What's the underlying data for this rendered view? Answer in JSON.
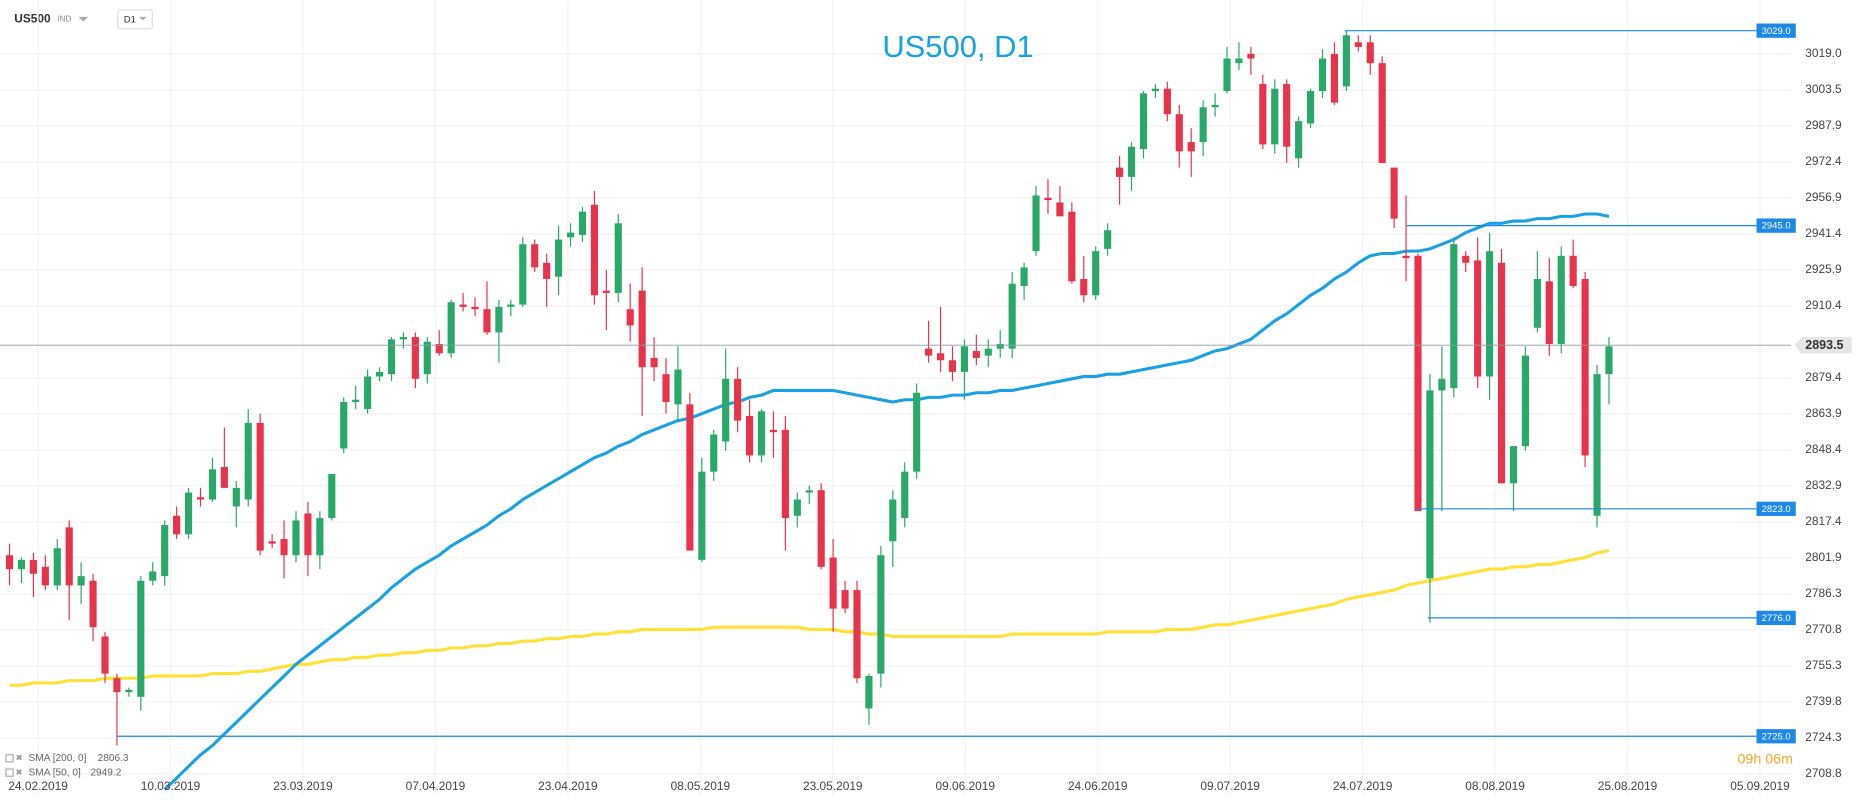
{
  "header": {
    "symbol": "US500",
    "market": "IND",
    "timeframe": "D1"
  },
  "chart_data": {
    "type": "candlestick",
    "title": "US500, D1",
    "up_color": "#2aa869",
    "down_color": "#e8334d",
    "ohlc": [
      [
        2803,
        2808,
        2790,
        2797
      ],
      [
        2797,
        2802,
        2791,
        2801
      ],
      [
        2801,
        2804,
        2785,
        2795
      ],
      [
        2798,
        2803,
        2788,
        2790
      ],
      [
        2790,
        2810,
        2788,
        2806
      ],
      [
        2815,
        2818,
        2775,
        2790
      ],
      [
        2790,
        2800,
        2782,
        2794
      ],
      [
        2792,
        2795,
        2766,
        2772
      ],
      [
        2768,
        2770,
        2748,
        2752
      ],
      [
        2750,
        2752,
        2721,
        2744
      ],
      [
        2744,
        2746,
        2742,
        2745
      ],
      [
        2742,
        2794,
        2736,
        2792
      ],
      [
        2792,
        2800,
        2790,
        2796
      ],
      [
        2794,
        2818,
        2790,
        2816
      ],
      [
        2820,
        2824,
        2810,
        2812
      ],
      [
        2812,
        2832,
        2810,
        2830
      ],
      [
        2828,
        2832,
        2824,
        2827
      ],
      [
        2827,
        2845,
        2826,
        2840
      ],
      [
        2841,
        2858,
        2832,
        2832
      ],
      [
        2824,
        2835,
        2815,
        2832
      ],
      [
        2827,
        2866,
        2824,
        2860
      ],
      [
        2860,
        2864,
        2803,
        2805
      ],
      [
        2809,
        2812,
        2806,
        2808
      ],
      [
        2810,
        2818,
        2793,
        2803
      ],
      [
        2803,
        2822,
        2800,
        2818
      ],
      [
        2821,
        2826,
        2794,
        2803
      ],
      [
        2803,
        2822,
        2797,
        2819
      ],
      [
        2819,
        2838,
        2818,
        2838
      ],
      [
        2849,
        2871,
        2847,
        2869
      ],
      [
        2869,
        2876,
        2866,
        2870
      ],
      [
        2866,
        2883,
        2864,
        2880
      ],
      [
        2880,
        2884,
        2878,
        2882
      ],
      [
        2881,
        2897,
        2878,
        2896
      ],
      [
        2896,
        2899,
        2892,
        2897
      ],
      [
        2897,
        2899,
        2875,
        2879
      ],
      [
        2881,
        2897,
        2877,
        2895
      ],
      [
        2894,
        2900,
        2889,
        2890
      ],
      [
        2890,
        2913,
        2888,
        2912
      ],
      [
        2911,
        2916,
        2908,
        2910
      ],
      [
        2910,
        2914,
        2906,
        2909
      ],
      [
        2909,
        2921,
        2898,
        2899
      ],
      [
        2899,
        2913,
        2886,
        2910
      ],
      [
        2910,
        2913,
        2906,
        2911
      ],
      [
        2911,
        2940,
        2910,
        2937
      ],
      [
        2937,
        2939,
        2925,
        2927
      ],
      [
        2929,
        2933,
        2910,
        2922
      ],
      [
        2923,
        2945,
        2915,
        2939
      ],
      [
        2940,
        2946,
        2936,
        2942
      ],
      [
        2941,
        2953,
        2938,
        2951
      ],
      [
        2954,
        2960,
        2911,
        2915
      ],
      [
        2917,
        2926,
        2900,
        2916
      ],
      [
        2916,
        2950,
        2912,
        2946
      ],
      [
        2909,
        2920,
        2895,
        2902
      ],
      [
        2917,
        2927,
        2863,
        2884
      ],
      [
        2888,
        2897,
        2878,
        2884
      ],
      [
        2881,
        2888,
        2864,
        2869
      ],
      [
        2868,
        2893,
        2861,
        2883
      ],
      [
        2868,
        2873,
        2805,
        2805
      ],
      [
        2801,
        2845,
        2800,
        2839
      ],
      [
        2839,
        2857,
        2835,
        2855
      ],
      [
        2852,
        2892,
        2848,
        2879
      ],
      [
        2879,
        2884,
        2856,
        2861
      ],
      [
        2863,
        2870,
        2843,
        2846
      ],
      [
        2846,
        2866,
        2843,
        2865
      ],
      [
        2857,
        2865,
        2845,
        2856
      ],
      [
        2857,
        2863,
        2805,
        2819
      ],
      [
        2820,
        2830,
        2815,
        2827
      ],
      [
        2830,
        2833,
        2825,
        2831
      ],
      [
        2831,
        2834,
        2797,
        2798
      ],
      [
        2802,
        2810,
        2770,
        2780
      ],
      [
        2788,
        2792,
        2778,
        2780
      ],
      [
        2788,
        2792,
        2748,
        2750
      ],
      [
        2737,
        2752,
        2730,
        2751
      ],
      [
        2752,
        2807,
        2746,
        2803
      ],
      [
        2809,
        2831,
        2798,
        2827
      ],
      [
        2819,
        2843,
        2815,
        2839
      ],
      [
        2839,
        2877,
        2836,
        2873
      ],
      [
        2892,
        2904,
        2886,
        2889
      ],
      [
        2890,
        2910,
        2882,
        2887
      ],
      [
        2887,
        2893,
        2878,
        2882
      ],
      [
        2882,
        2896,
        2870,
        2893
      ],
      [
        2891,
        2898,
        2885,
        2888
      ],
      [
        2889,
        2896,
        2884,
        2892
      ],
      [
        2892,
        2900,
        2888,
        2894
      ],
      [
        2892,
        2925,
        2888,
        2920
      ],
      [
        2919,
        2929,
        2913,
        2927
      ],
      [
        2934,
        2962,
        2932,
        2958
      ],
      [
        2957,
        2965,
        2950,
        2956
      ],
      [
        2955,
        2962,
        2950,
        2949
      ],
      [
        2951,
        2955,
        2920,
        2921
      ],
      [
        2922,
        2932,
        2912,
        2915
      ],
      [
        2915,
        2936,
        2913,
        2934
      ],
      [
        2935,
        2946,
        2932,
        2943
      ],
      [
        2970,
        2975,
        2954,
        2966
      ],
      [
        2966,
        2981,
        2960,
        2979
      ],
      [
        2978,
        3003,
        2974,
        3002
      ],
      [
        3003,
        3006,
        3000,
        3004
      ],
      [
        3004,
        3007,
        2990,
        2993
      ],
      [
        2993,
        2997,
        2970,
        2977
      ],
      [
        2981,
        2987,
        2966,
        2977
      ],
      [
        2981,
        2999,
        2975,
        2996
      ],
      [
        2996,
        3002,
        2992,
        2997
      ],
      [
        3003,
        3022,
        3002,
        3017
      ],
      [
        3015,
        3024,
        3012,
        3017
      ],
      [
        3019,
        3022,
        3010,
        3017
      ],
      [
        3006,
        3010,
        2978,
        2980
      ],
      [
        2980,
        3008,
        2976,
        3004
      ],
      [
        3006,
        3008,
        2972,
        2979
      ],
      [
        2974,
        2992,
        2970,
        2990
      ],
      [
        2989,
        3004,
        2987,
        3003
      ],
      [
        3003,
        3021,
        3000,
        3017
      ],
      [
        3019,
        3024,
        2997,
        2998
      ],
      [
        3005,
        3029,
        3003,
        3027
      ],
      [
        3024,
        3027,
        3020,
        3022
      ],
      [
        3024,
        3027,
        3010,
        3015
      ],
      [
        3015,
        3018,
        2972,
        2972
      ],
      [
        2970,
        2970,
        2944,
        2948
      ],
      [
        2932,
        2958,
        2921,
        2931
      ],
      [
        2932,
        2933,
        2822,
        2822
      ],
      [
        2793,
        2881,
        2774,
        2874
      ],
      [
        2874,
        2893,
        2822,
        2879
      ],
      [
        2875,
        2940,
        2871,
        2937
      ],
      [
        2932,
        2934,
        2925,
        2929
      ],
      [
        2930,
        2940,
        2875,
        2880
      ],
      [
        2880,
        2942,
        2870,
        2934
      ],
      [
        2929,
        2935,
        2834,
        2834
      ],
      [
        2834,
        2850,
        2822,
        2850
      ],
      [
        2850,
        2893,
        2848,
        2889
      ],
      [
        2901,
        2934,
        2899,
        2922
      ],
      [
        2921,
        2931,
        2889,
        2894
      ],
      [
        2894,
        2936,
        2890,
        2932
      ],
      [
        2932,
        2939,
        2918,
        2919
      ],
      [
        2922,
        2925,
        2841,
        2846
      ],
      [
        2820,
        2885,
        2815,
        2881
      ],
      [
        2881,
        2897,
        2868,
        2893
      ]
    ],
    "series": [
      {
        "name": "SMA [200, 0]",
        "last": 2806.3,
        "color": "#ffe135",
        "values": [
          2747,
          2747,
          2748,
          2748,
          2748,
          2749,
          2749,
          2749,
          2750,
          2750,
          2750,
          2750,
          2751,
          2751,
          2751,
          2751,
          2751,
          2752,
          2752,
          2752,
          2753,
          2753,
          2754,
          2755,
          2756,
          2756,
          2757,
          2758,
          2758,
          2759,
          2759,
          2760,
          2760,
          2761,
          2761,
          2762,
          2762,
          2763,
          2763,
          2764,
          2764,
          2765,
          2765,
          2766,
          2766,
          2767,
          2767,
          2768,
          2768,
          2769,
          2769,
          2770,
          2770,
          2771,
          2771,
          2771,
          2771,
          2771,
          2771,
          2772,
          2772,
          2772,
          2772,
          2772,
          2772,
          2772,
          2772,
          2771,
          2771,
          2771,
          2770,
          2770,
          2769,
          2769,
          2768,
          2768,
          2768,
          2768,
          2768,
          2768,
          2768,
          2768,
          2768,
          2768,
          2769,
          2769,
          2769,
          2769,
          2769,
          2769,
          2769,
          2769,
          2770,
          2770,
          2770,
          2770,
          2770,
          2771,
          2771,
          2771,
          2772,
          2773,
          2773,
          2774,
          2775,
          2776,
          2777,
          2778,
          2779,
          2780,
          2781,
          2782,
          2784,
          2785,
          2786,
          2787,
          2788,
          2790,
          2791,
          2792,
          2793,
          2794,
          2795,
          2796,
          2797,
          2797,
          2798,
          2798,
          2799,
          2799,
          2800,
          2801,
          2802,
          2804,
          2805
        ]
      },
      {
        "name": "SMA [50, 0]",
        "last": 2949.2,
        "color": "#1ba1e2",
        "values": [
          null,
          null,
          null,
          null,
          null,
          null,
          null,
          null,
          null,
          null,
          null,
          null,
          null,
          2702,
          2707,
          2712,
          2717,
          2721,
          2726,
          2731,
          2736,
          2741,
          2746,
          2751,
          2756,
          2760,
          2764,
          2768,
          2772,
          2776,
          2780,
          2784,
          2789,
          2793,
          2797,
          2800,
          2803,
          2807,
          2810,
          2813,
          2816,
          2820,
          2823,
          2827,
          2830,
          2833,
          2836,
          2839,
          2842,
          2845,
          2847,
          2850,
          2852,
          2855,
          2857,
          2859,
          2861,
          2862,
          2864,
          2866,
          2868,
          2869,
          2871,
          2872,
          2874,
          2874,
          2874,
          2874,
          2874,
          2874,
          2873,
          2872,
          2871,
          2870,
          2869,
          2870,
          2870,
          2871,
          2871,
          2872,
          2872,
          2873,
          2873,
          2874,
          2874,
          2875,
          2876,
          2877,
          2878,
          2879,
          2880,
          2880,
          2881,
          2881,
          2882,
          2883,
          2884,
          2885,
          2886,
          2887,
          2889,
          2891,
          2892,
          2894,
          2896,
          2900,
          2904,
          2907,
          2911,
          2915,
          2918,
          2922,
          2925,
          2929,
          2932,
          2933,
          2933,
          2934,
          2934,
          2935,
          2937,
          2939,
          2942,
          2944,
          2946,
          2946,
          2947,
          2947,
          2948,
          2948,
          2949,
          2949,
          2950,
          2950,
          2949
        ]
      }
    ],
    "x_labels": [
      "24.02.2019",
      "10.03.2019",
      "23.03.2019",
      "07.04.2019",
      "23.04.2019",
      "08.05.2019",
      "23.05.2019",
      "09.06.2019",
      "24.06.2019",
      "09.07.2019",
      "24.07.2019",
      "08.08.2019",
      "25.08.2019",
      "05.09.2019"
    ],
    "ylim": [
      2699.6,
      3042.1
    ],
    "yticks": [
      {
        "value": 3019,
        "label": "3019.0"
      },
      3003.5,
      2987.9,
      2972.4,
      2956.9,
      2941.4,
      2925.9,
      2910.4,
      2879.4,
      2863.9,
      2848.4,
      2832.9,
      2817.4,
      2801.9,
      2786.3,
      2770.8,
      2755.3,
      2739.8,
      2724.3,
      2708.8
    ],
    "levels": [
      {
        "value": 3029,
        "label": "3029.0"
      },
      {
        "value": 2945,
        "label": "2945.0"
      },
      {
        "value": 2823,
        "label": "2823.0"
      },
      {
        "value": 2776,
        "label": "2776.0"
      },
      {
        "value": 2725,
        "label": "2725.0"
      }
    ],
    "level_color": "#1e88e5",
    "current_price": 2893.5,
    "timer": "09h 06m",
    "grid": true
  }
}
